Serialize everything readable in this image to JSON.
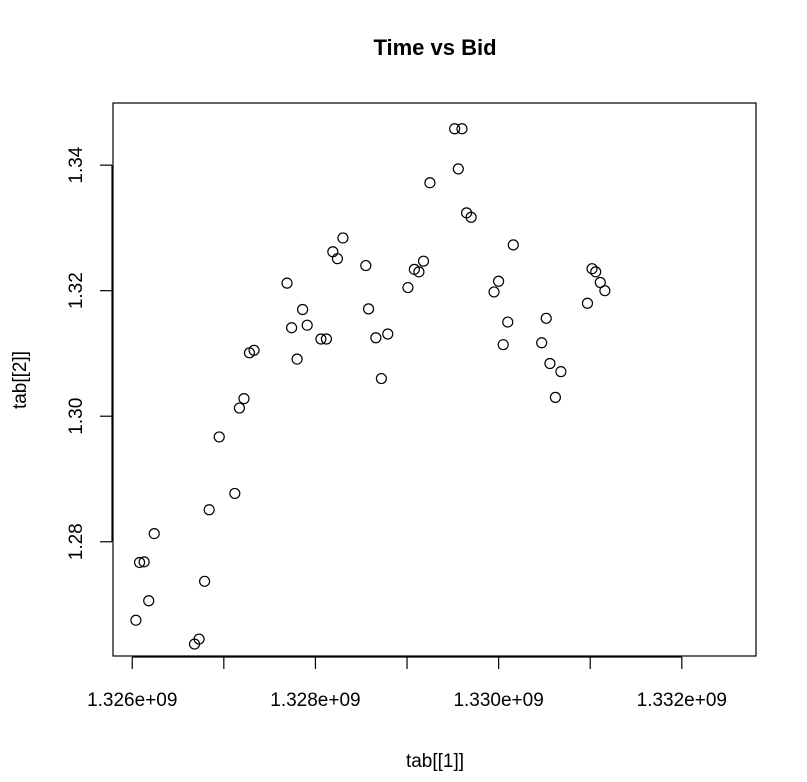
{
  "chart_data": {
    "type": "scatter",
    "title": "Time vs Bid",
    "xlabel": "tab[[1]]",
    "ylabel": "tab[[2]]",
    "xlim": [
      1325790000,
      1332810000
    ],
    "ylim": [
      1.2618,
      1.3499
    ],
    "x_ticks": [
      1326000000,
      1327000000,
      1328000000,
      1329000000,
      1330000000,
      1331000000,
      1332000000
    ],
    "x_tick_labels": [
      "1.326e+09",
      "",
      "1.328e+09",
      "",
      "1.330e+09",
      "",
      "1.332e+09"
    ],
    "y_ticks": [
      1.28,
      1.3,
      1.32,
      1.34
    ],
    "y_tick_labels": [
      "1.28",
      "1.30",
      "1.32",
      "1.34"
    ],
    "grid": false,
    "marker": "open-circle",
    "color": "#000000",
    "points": [
      [
        1326040000,
        1.2675
      ],
      [
        1326080000,
        1.2767
      ],
      [
        1326130000,
        1.2768
      ],
      [
        1326180000,
        1.2706
      ],
      [
        1326240000,
        1.2813
      ],
      [
        1326680000,
        1.2637
      ],
      [
        1326730000,
        1.2645
      ],
      [
        1326790000,
        1.2737
      ],
      [
        1326840000,
        1.2851
      ],
      [
        1326950000,
        1.2967
      ],
      [
        1327120000,
        1.2877
      ],
      [
        1327170000,
        1.3013
      ],
      [
        1327220000,
        1.3028
      ],
      [
        1327280000,
        1.3101
      ],
      [
        1327330000,
        1.3105
      ],
      [
        1327690000,
        1.3212
      ],
      [
        1327740000,
        1.3141
      ],
      [
        1327800000,
        1.3091
      ],
      [
        1327860000,
        1.317
      ],
      [
        1327910000,
        1.3145
      ],
      [
        1328060000,
        1.3123
      ],
      [
        1328120000,
        1.3123
      ],
      [
        1328190000,
        1.3262
      ],
      [
        1328240000,
        1.3251
      ],
      [
        1328300000,
        1.3284
      ],
      [
        1328550000,
        1.324
      ],
      [
        1328580000,
        1.3171
      ],
      [
        1328660000,
        1.3125
      ],
      [
        1328720000,
        1.306
      ],
      [
        1328790000,
        1.3131
      ],
      [
        1329010000,
        1.3205
      ],
      [
        1329080000,
        1.3234
      ],
      [
        1329130000,
        1.323
      ],
      [
        1329180000,
        1.3247
      ],
      [
        1329250000,
        1.3372
      ],
      [
        1329520000,
        1.3458
      ],
      [
        1329560000,
        1.3394
      ],
      [
        1329600000,
        1.3458
      ],
      [
        1329650000,
        1.3324
      ],
      [
        1329700000,
        1.3317
      ],
      [
        1329950000,
        1.3198
      ],
      [
        1330000000,
        1.3215
      ],
      [
        1330050000,
        1.3114
      ],
      [
        1330100000,
        1.315
      ],
      [
        1330160000,
        1.3273
      ],
      [
        1330470000,
        1.3117
      ],
      [
        1330520000,
        1.3156
      ],
      [
        1330560000,
        1.3084
      ],
      [
        1330620000,
        1.303
      ],
      [
        1330680000,
        1.3071
      ],
      [
        1330970000,
        1.318
      ],
      [
        1331020000,
        1.3235
      ],
      [
        1331060000,
        1.323
      ],
      [
        1331110000,
        1.3213
      ],
      [
        1331160000,
        1.32
      ]
    ]
  }
}
